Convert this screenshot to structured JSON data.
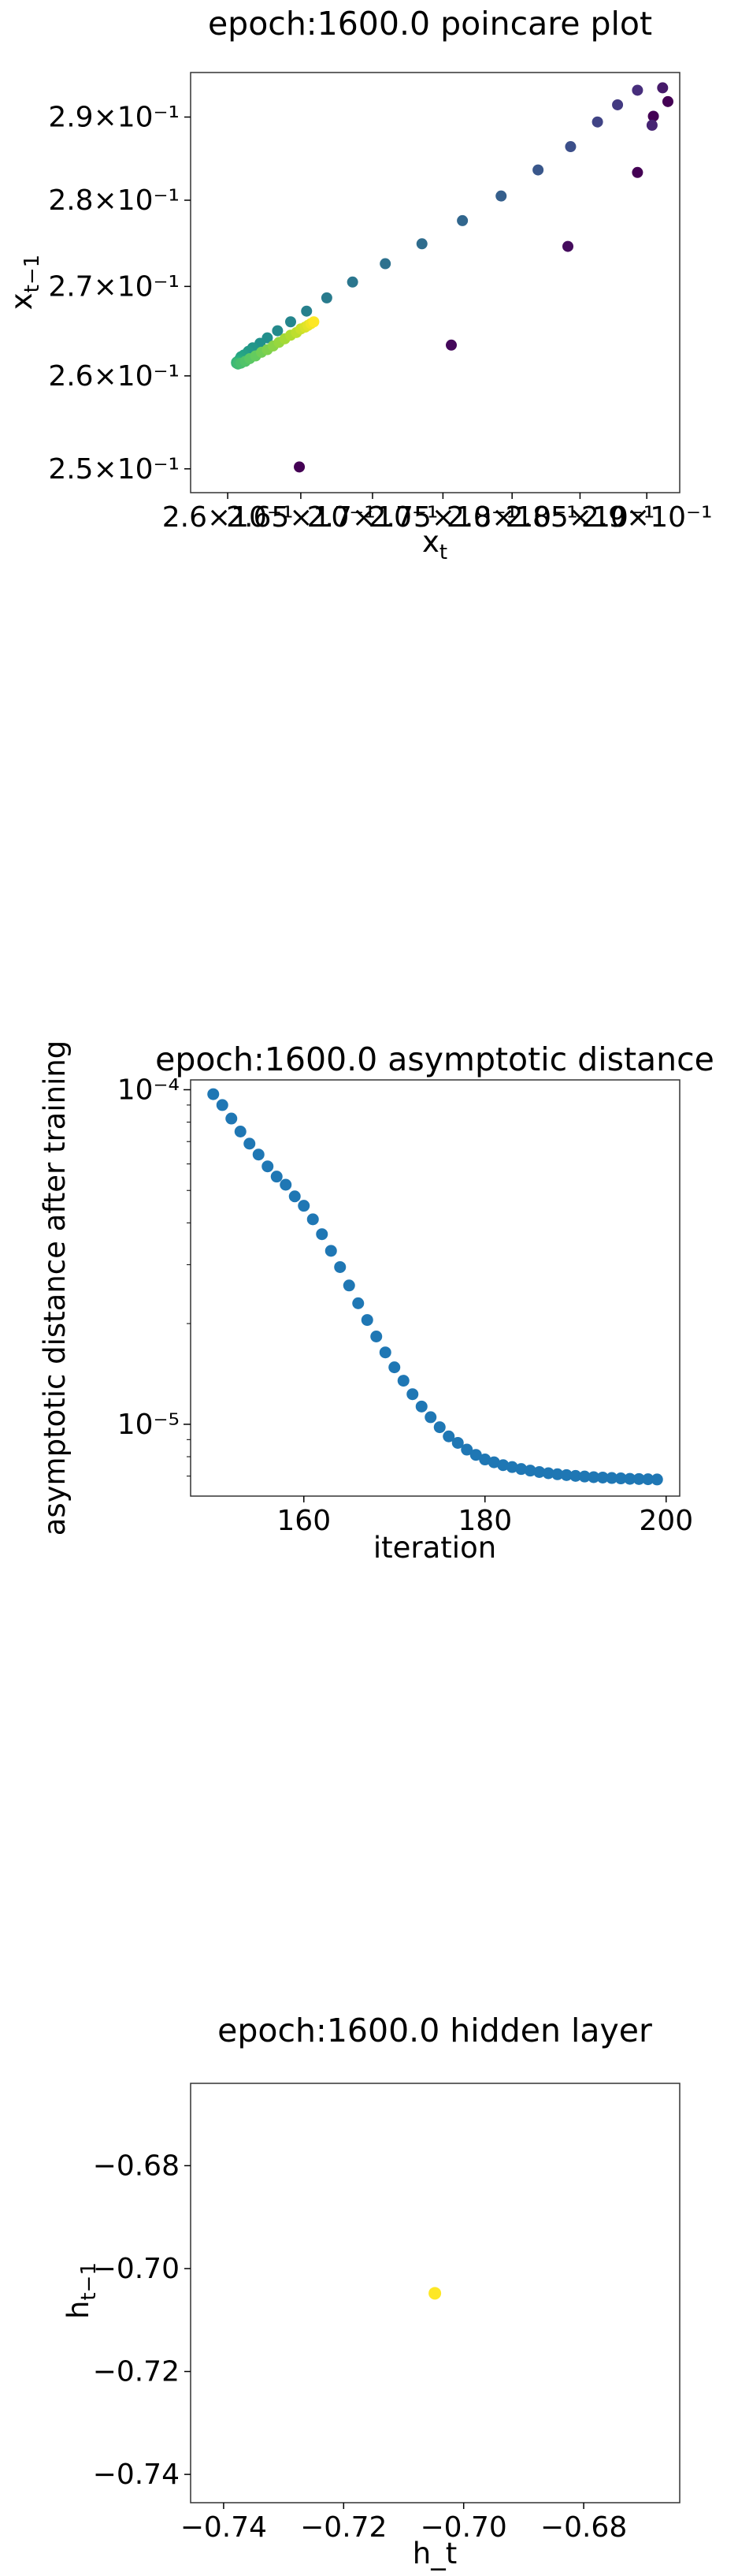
{
  "chart_data": [
    {
      "type": "scatter",
      "title": "epoch:1600.0 poincare plot",
      "xlabel": "x",
      "xlabel_sub": "t",
      "ylabel": "x",
      "ylabel_sub": "t−1",
      "log_x": true,
      "log_y": true,
      "xlim": [
        0.2575,
        0.2925
      ],
      "ylim": [
        0.2475,
        0.2955
      ],
      "xticks": [
        {
          "value": 0.26,
          "label": "2.6×10⁻¹"
        },
        {
          "value": 0.265,
          "label": "2.65×10⁻¹"
        },
        {
          "value": 0.27,
          "label": "2.7×10⁻¹"
        },
        {
          "value": 0.275,
          "label": "2.75×10⁻¹"
        },
        {
          "value": 0.28,
          "label": "2.8×10⁻¹"
        },
        {
          "value": 0.285,
          "label": "2.85×10⁻¹"
        },
        {
          "value": 0.29,
          "label": "2.9×10⁻¹"
        }
      ],
      "yticks": [
        {
          "value": 0.25,
          "label": "2.5×10⁻¹"
        },
        {
          "value": 0.26,
          "label": "2.6×10⁻¹"
        },
        {
          "value": 0.27,
          "label": "2.7×10⁻¹"
        },
        {
          "value": 0.28,
          "label": "2.8×10⁻¹"
        },
        {
          "value": 0.29,
          "label": "2.9×10⁻¹"
        }
      ],
      "colormap": "viridis",
      "colormap_stops": [
        "#440154",
        "#472d7b",
        "#3b528b",
        "#2c728e",
        "#21918c",
        "#28ae80",
        "#5ec962",
        "#addc30",
        "#fde725"
      ],
      "points": [
        {
          "x": 0.2916,
          "y": 0.2919,
          "c": 0.0
        },
        {
          "x": 0.2905,
          "y": 0.2901,
          "c": 0.0
        },
        {
          "x": 0.2912,
          "y": 0.2936,
          "c": 0.07
        },
        {
          "x": 0.2893,
          "y": 0.2833,
          "c": 0.0
        },
        {
          "x": 0.2904,
          "y": 0.289,
          "c": 0.1
        },
        {
          "x": 0.2841,
          "y": 0.2746,
          "c": 0.03
        },
        {
          "x": 0.2893,
          "y": 0.2933,
          "c": 0.13
        },
        {
          "x": 0.2756,
          "y": 0.2634,
          "c": 0.02
        },
        {
          "x": 0.2878,
          "y": 0.2915,
          "c": 0.17
        },
        {
          "x": 0.2649,
          "y": 0.2502,
          "c": 0.0
        },
        {
          "x": 0.2863,
          "y": 0.2894,
          "c": 0.2
        },
        {
          "x": 0.2843,
          "y": 0.2864,
          "c": 0.24
        },
        {
          "x": 0.2819,
          "y": 0.2836,
          "c": 0.27
        },
        {
          "x": 0.2792,
          "y": 0.2805,
          "c": 0.3
        },
        {
          "x": 0.2764,
          "y": 0.2776,
          "c": 0.33
        },
        {
          "x": 0.2735,
          "y": 0.2749,
          "c": 0.35
        },
        {
          "x": 0.2709,
          "y": 0.2726,
          "c": 0.37
        },
        {
          "x": 0.2686,
          "y": 0.2705,
          "c": 0.39
        },
        {
          "x": 0.2668,
          "y": 0.2687,
          "c": 0.41
        },
        {
          "x": 0.2654,
          "y": 0.2672,
          "c": 0.43
        },
        {
          "x": 0.2643,
          "y": 0.266,
          "c": 0.45
        },
        {
          "x": 0.2634,
          "y": 0.265,
          "c": 0.47
        },
        {
          "x": 0.2627,
          "y": 0.2642,
          "c": 0.49
        },
        {
          "x": 0.2622,
          "y": 0.2636,
          "c": 0.5
        },
        {
          "x": 0.2617,
          "y": 0.2631,
          "c": 0.52
        },
        {
          "x": 0.2614,
          "y": 0.2627,
          "c": 0.54
        },
        {
          "x": 0.2611,
          "y": 0.2623,
          "c": 0.56
        },
        {
          "x": 0.2609,
          "y": 0.2621,
          "c": 0.58
        },
        {
          "x": 0.2608,
          "y": 0.2618,
          "c": 0.6
        },
        {
          "x": 0.2607,
          "y": 0.2616,
          "c": 0.62
        },
        {
          "x": 0.2606,
          "y": 0.2615,
          "c": 0.64
        },
        {
          "x": 0.2606,
          "y": 0.2614,
          "c": 0.66
        },
        {
          "x": 0.2607,
          "y": 0.2613,
          "c": 0.68
        },
        {
          "x": 0.2609,
          "y": 0.2614,
          "c": 0.7
        },
        {
          "x": 0.2612,
          "y": 0.2616,
          "c": 0.72
        },
        {
          "x": 0.2615,
          "y": 0.2619,
          "c": 0.74
        },
        {
          "x": 0.2619,
          "y": 0.2622,
          "c": 0.76
        },
        {
          "x": 0.2623,
          "y": 0.2626,
          "c": 0.78
        },
        {
          "x": 0.2627,
          "y": 0.2629,
          "c": 0.8
        },
        {
          "x": 0.2631,
          "y": 0.2633,
          "c": 0.82
        },
        {
          "x": 0.2635,
          "y": 0.2637,
          "c": 0.84
        },
        {
          "x": 0.2639,
          "y": 0.2641,
          "c": 0.86
        },
        {
          "x": 0.2643,
          "y": 0.2645,
          "c": 0.88
        },
        {
          "x": 0.2647,
          "y": 0.2648,
          "c": 0.9
        },
        {
          "x": 0.265,
          "y": 0.2652,
          "c": 0.92
        },
        {
          "x": 0.2653,
          "y": 0.2654,
          "c": 0.94
        },
        {
          "x": 0.2655,
          "y": 0.2656,
          "c": 0.96
        },
        {
          "x": 0.2657,
          "y": 0.2658,
          "c": 0.98
        },
        {
          "x": 0.2659,
          "y": 0.266,
          "c": 1.0
        }
      ]
    },
    {
      "type": "scatter",
      "title": "epoch:1600.0 asymptotic distance",
      "xlabel": "iteration",
      "ylabel": "asymptotic distance after training",
      "log_y": true,
      "xlim": [
        147.5,
        201.5
      ],
      "ylim": [
        6.1e-06,
        0.000107
      ],
      "xticks": [
        160,
        180,
        200
      ],
      "yticks": [
        {
          "value": 1e-05,
          "label": "10⁻⁵"
        },
        {
          "value": 0.0001,
          "label": "10⁻⁴"
        }
      ],
      "color": "#1f77b4",
      "x": [
        150,
        151,
        152,
        153,
        154,
        155,
        156,
        157,
        158,
        159,
        160,
        161,
        162,
        163,
        164,
        165,
        166,
        167,
        168,
        169,
        170,
        171,
        172,
        173,
        174,
        175,
        176,
        177,
        178,
        179,
        180,
        181,
        182,
        183,
        184,
        185,
        186,
        187,
        188,
        189,
        190,
        191,
        192,
        193,
        194,
        195,
        196,
        197,
        198,
        199
      ],
      "y": [
        9.7e-05,
        9e-05,
        8.2e-05,
        7.5e-05,
        6.9e-05,
        6.4e-05,
        5.9e-05,
        5.5e-05,
        5.2e-05,
        4.8e-05,
        4.5e-05,
        4.1e-05,
        3.7e-05,
        3.3e-05,
        2.95e-05,
        2.6e-05,
        2.3e-05,
        2.05e-05,
        1.83e-05,
        1.64e-05,
        1.48e-05,
        1.35e-05,
        1.23e-05,
        1.13e-05,
        1.05e-05,
        9.8e-06,
        9.2e-06,
        8.8e-06,
        8.4e-06,
        8.1e-06,
        7.85e-06,
        7.7e-06,
        7.55e-06,
        7.45e-06,
        7.35e-06,
        7.27e-06,
        7.2e-06,
        7.14e-06,
        7.09e-06,
        7.05e-06,
        7.01e-06,
        6.98e-06,
        6.95e-06,
        6.93e-06,
        6.91e-06,
        6.89e-06,
        6.87e-06,
        6.86e-06,
        6.85e-06,
        6.84e-06
      ]
    },
    {
      "type": "scatter",
      "title": "epoch:1600.0 hidden layer",
      "xlabel": "h_t",
      "ylabel": "h",
      "ylabel_sub": "t−1",
      "xlim": [
        -0.7455,
        -0.664
      ],
      "ylim": [
        -0.7455,
        -0.664
      ],
      "xticks": [
        {
          "value": -0.74,
          "label": "−0.74"
        },
        {
          "value": -0.72,
          "label": "−0.72"
        },
        {
          "value": -0.7,
          "label": "−0.70"
        },
        {
          "value": -0.68,
          "label": "−0.68"
        }
      ],
      "yticks": [
        {
          "value": -0.74,
          "label": "−0.74"
        },
        {
          "value": -0.72,
          "label": "−0.72"
        },
        {
          "value": -0.7,
          "label": "−0.70"
        },
        {
          "value": -0.68,
          "label": "−0.68"
        }
      ],
      "color": "#fde725",
      "points": [
        {
          "x": -0.7048,
          "y": -0.7048
        }
      ]
    }
  ]
}
